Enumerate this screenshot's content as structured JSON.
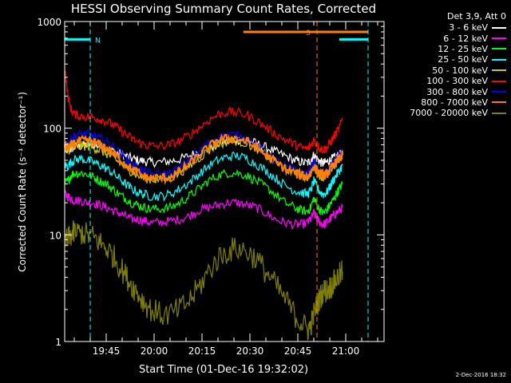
{
  "chart_data": {
    "type": "line",
    "title": "HESSI Observing Summary Count Rates, Corrected",
    "xlabel": "Start Time (01-Dec-16 19:32:02)",
    "ylabel": "Corrected Count Rate (s⁻¹ detector⁻¹)",
    "y_scale": "log",
    "ylim": [
      1,
      1000
    ],
    "y_ticks": [
      {
        "value": 1,
        "label": "1"
      },
      {
        "value": 10,
        "label": "10"
      },
      {
        "value": 100,
        "label": "100"
      },
      {
        "value": 1000,
        "label": "1000"
      }
    ],
    "x_range_min": [
      0,
      100
    ],
    "x_ticks": [
      {
        "min": 13,
        "label": "19:45"
      },
      {
        "min": 28,
        "label": "20:00"
      },
      {
        "min": 43,
        "label": "20:15"
      },
      {
        "min": 58,
        "label": "20:30"
      },
      {
        "min": 73,
        "label": "20:45"
      },
      {
        "min": 88,
        "label": "21:00"
      }
    ],
    "x_points_min": [
      0,
      1,
      2,
      3,
      5,
      7,
      9,
      11,
      13,
      15,
      17,
      19,
      21,
      23,
      25,
      27,
      30,
      33,
      36,
      39,
      42,
      45,
      48,
      51,
      54,
      57,
      60,
      63,
      66,
      69,
      72,
      74,
      76,
      77,
      78,
      79,
      80,
      81,
      82,
      83,
      84,
      85,
      86,
      87
    ],
    "series": [
      {
        "name": "3 - 6 keV",
        "color": "#ffffff",
        "values": [
          62,
          62,
          64,
          66,
          68,
          70,
          70,
          68,
          65,
          62,
          58,
          55,
          52,
          50,
          49,
          48,
          48,
          49,
          51,
          55,
          60,
          66,
          72,
          76,
          78,
          76,
          72,
          66,
          60,
          55,
          50,
          48,
          47,
          50,
          56,
          52,
          48,
          47,
          48,
          50,
          52,
          54,
          56,
          58
        ]
      },
      {
        "name": "6 - 12 keV",
        "color": "#ff00ff",
        "values": [
          24,
          23,
          22,
          21,
          21,
          20,
          20,
          19,
          18,
          17,
          16,
          15,
          14,
          14,
          13.5,
          13,
          13,
          13.5,
          14,
          15,
          17,
          18,
          19,
          20,
          20,
          19,
          18,
          16,
          14,
          13,
          12.5,
          12.5,
          13,
          14,
          16,
          14,
          13,
          12.5,
          13,
          14,
          15,
          16,
          17,
          18
        ]
      },
      {
        "name": "12 - 25 keV",
        "color": "#00ff00",
        "values": [
          30,
          32,
          36,
          38,
          38,
          37,
          35,
          32,
          30,
          27,
          24,
          22,
          20,
          19,
          18,
          17.5,
          17.5,
          18,
          20,
          23,
          27,
          32,
          36,
          38,
          38,
          36,
          32,
          28,
          24,
          20,
          18,
          17,
          16.5,
          18,
          22,
          19,
          17,
          16,
          17,
          19,
          21,
          24,
          27,
          30
        ]
      },
      {
        "name": "25 - 50 keV",
        "color": "#00ffff",
        "values": [
          45,
          44,
          48,
          50,
          52,
          50,
          48,
          45,
          42,
          38,
          34,
          30,
          27,
          25,
          24,
          23,
          23,
          24,
          27,
          31,
          37,
          44,
          50,
          54,
          55,
          52,
          46,
          40,
          34,
          29,
          26,
          25,
          24,
          26,
          32,
          28,
          25,
          24,
          25,
          28,
          32,
          36,
          40,
          45
        ]
      },
      {
        "name": "50 - 100 keV",
        "color": "#cccc00",
        "values": [
          62,
          62,
          64,
          66,
          68,
          68,
          66,
          62,
          58,
          53,
          48,
          43,
          39,
          36,
          34,
          33,
          33,
          34,
          38,
          44,
          52,
          62,
          70,
          75,
          76,
          72,
          65,
          56,
          48,
          42,
          38,
          36,
          35,
          38,
          44,
          39,
          36,
          35,
          36,
          40,
          44,
          50,
          55,
          62
        ]
      },
      {
        "name": "100 - 300 keV",
        "color": "#ff0000",
        "values": [
          380,
          200,
          150,
          135,
          130,
          128,
          126,
          122,
          116,
          108,
          98,
          88,
          80,
          74,
          70,
          68,
          68,
          70,
          76,
          86,
          100,
          118,
          134,
          142,
          140,
          132,
          118,
          102,
          88,
          78,
          70,
          66,
          64,
          68,
          78,
          70,
          65,
          63,
          65,
          72,
          80,
          90,
          100,
          125
        ]
      },
      {
        "name": "300 - 800 keV",
        "color": "#0000ff",
        "values": [
          70,
          72,
          78,
          84,
          88,
          88,
          85,
          80,
          75,
          68,
          60,
          52,
          46,
          42,
          39,
          37,
          37,
          38,
          42,
          50,
          60,
          72,
          82,
          86,
          86,
          80,
          70,
          58,
          50,
          44,
          40,
          38,
          37,
          40,
          48,
          42,
          38,
          37,
          38,
          42,
          47,
          52,
          56,
          60
        ]
      },
      {
        "name": "800 - 7000 keV",
        "color": "#ff8000",
        "values": [
          66,
          66,
          68,
          72,
          76,
          76,
          74,
          70,
          65,
          59,
          52,
          46,
          41,
          38,
          35,
          34,
          34,
          35,
          39,
          46,
          55,
          66,
          76,
          80,
          80,
          75,
          66,
          56,
          48,
          42,
          38,
          36,
          35,
          38,
          44,
          40,
          37,
          36,
          37,
          40,
          44,
          48,
          52,
          56
        ]
      },
      {
        "name": "7000 - 20000 keV",
        "color": "#808000",
        "values": [
          8.5,
          9,
          10,
          10.5,
          10.5,
          10,
          9.5,
          8.5,
          7.5,
          6.5,
          5.2,
          4.2,
          3.4,
          2.8,
          2.3,
          2,
          1.8,
          1.8,
          2,
          2.4,
          3.2,
          4.5,
          6,
          7,
          7.5,
          7,
          6,
          4.5,
          3.4,
          2.5,
          1.8,
          1.5,
          1.3,
          1.4,
          1.8,
          2.2,
          2.6,
          3,
          3,
          3.2,
          3.5,
          3.8,
          4.2,
          4.5
        ]
      }
    ],
    "markers": [
      {
        "label": "N",
        "color": "#00ffff",
        "bar_start_min": 0,
        "bar_end_min": 8,
        "line_min": 8,
        "y_value": 680
      },
      {
        "label": "S",
        "color": "#ff8000",
        "bar_start_min": 56,
        "bar_end_min": 95,
        "line_min": 79,
        "y_value": 800
      },
      {
        "label": "",
        "color": "#00ffff",
        "bar_start_min": 86,
        "bar_end_min": 95,
        "line_min": 95,
        "y_value": 680
      }
    ]
  },
  "legend": {
    "header": "Det 3,9, Att 0"
  },
  "timestamp": "2-Dec-2016 18:32",
  "colors": {
    "background": "#000000",
    "foreground": "#ffffff"
  }
}
